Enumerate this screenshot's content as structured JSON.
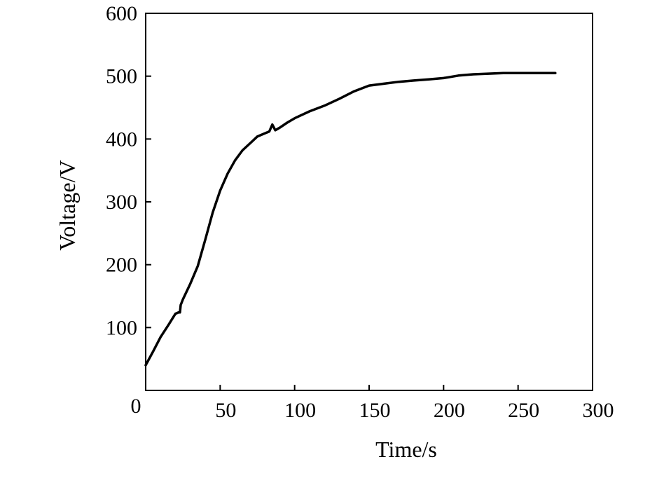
{
  "chart_data": {
    "type": "line",
    "title": "",
    "xlabel": "Time/s",
    "ylabel": "Voltage/V",
    "xlim": [
      0,
      300
    ],
    "ylim": [
      0,
      600
    ],
    "xticks": [
      0,
      50,
      100,
      150,
      200,
      250,
      300
    ],
    "yticks": [
      100,
      200,
      300,
      400,
      500,
      600
    ],
    "x_tick_labels": [
      "0",
      "50",
      "100",
      "150",
      "200",
      "250",
      "300"
    ],
    "y_tick_labels": [
      "100",
      "200",
      "300",
      "400",
      "500",
      "600"
    ],
    "grid": false,
    "legend": "none",
    "series": [
      {
        "color": "#000000",
        "points": [
          [
            0,
            40
          ],
          [
            5,
            62
          ],
          [
            10,
            85
          ],
          [
            15,
            103
          ],
          [
            20,
            122
          ],
          [
            22,
            124
          ],
          [
            23,
            124
          ],
          [
            23.5,
            136
          ],
          [
            25,
            145
          ],
          [
            30,
            170
          ],
          [
            35,
            198
          ],
          [
            40,
            240
          ],
          [
            45,
            283
          ],
          [
            50,
            318
          ],
          [
            55,
            345
          ],
          [
            60,
            366
          ],
          [
            65,
            382
          ],
          [
            70,
            393
          ],
          [
            75,
            404
          ],
          [
            80,
            409
          ],
          [
            83,
            412
          ],
          [
            85,
            423
          ],
          [
            87,
            414
          ],
          [
            90,
            418
          ],
          [
            95,
            426
          ],
          [
            100,
            433
          ],
          [
            110,
            444
          ],
          [
            120,
            453
          ],
          [
            130,
            464
          ],
          [
            140,
            476
          ],
          [
            150,
            485
          ],
          [
            160,
            488
          ],
          [
            170,
            491
          ],
          [
            180,
            493
          ],
          [
            190,
            495
          ],
          [
            200,
            497
          ],
          [
            210,
            501
          ],
          [
            220,
            503
          ],
          [
            230,
            504
          ],
          [
            240,
            505
          ],
          [
            250,
            505
          ],
          [
            260,
            505
          ],
          [
            275,
            505
          ]
        ]
      }
    ]
  }
}
